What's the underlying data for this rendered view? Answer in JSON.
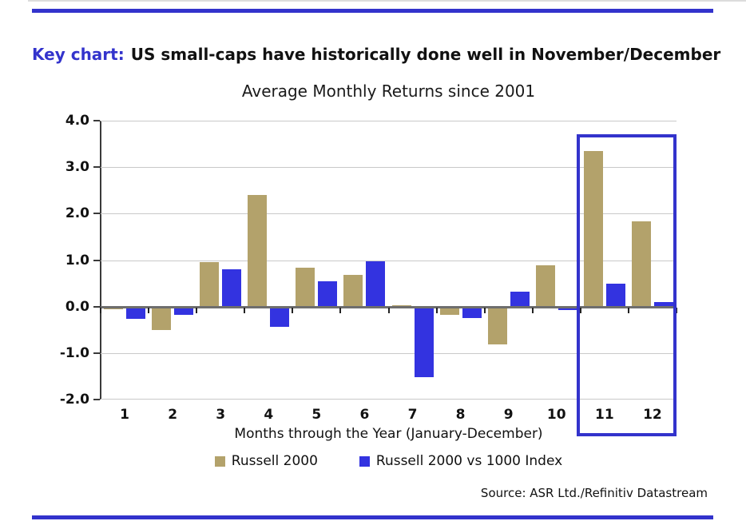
{
  "header": {
    "prefix": "Key chart:",
    "title": "US small-caps have historically done well in November/December"
  },
  "chart_data": {
    "type": "bar",
    "title": "Average Monthly Returns since 2001",
    "xlabel": "Months through the Year (January-December)",
    "categories": [
      "1",
      "2",
      "3",
      "4",
      "5",
      "6",
      "7",
      "8",
      "9",
      "10",
      "11",
      "12"
    ],
    "series": [
      {
        "name": "Russell 2000",
        "color": "#b3a26b",
        "values": [
          -0.05,
          -0.5,
          0.95,
          2.4,
          0.83,
          0.68,
          0.03,
          -0.17,
          -0.82,
          0.88,
          3.35,
          1.83
        ]
      },
      {
        "name": "Russell 2000 vs 1000 Index",
        "color": "#3333e0",
        "values": [
          -0.27,
          -0.18,
          0.8,
          -0.43,
          0.54,
          0.98,
          -1.52,
          -0.25,
          0.32,
          -0.08,
          0.5,
          0.09
        ]
      }
    ],
    "ylim": [
      -2.0,
      4.0
    ],
    "ytick_labels": [
      "4.0",
      "3.0",
      "2.0",
      "1.0",
      "0.0",
      "-1.0",
      "-2.0"
    ],
    "grid": true,
    "legend_position": "bottom",
    "highlight": {
      "category_start": "11",
      "category_end": "12",
      "color": "#3333cc",
      "meaning": "November/December highlighted"
    }
  },
  "footer": {
    "source": "Source: ASR Ltd./Refinitiv Datastream"
  },
  "colors": {
    "rule": "#3333cc",
    "accent_text": "#3333cc",
    "grid": "#c9c9c9",
    "zero_line": "#6e6e6e"
  }
}
